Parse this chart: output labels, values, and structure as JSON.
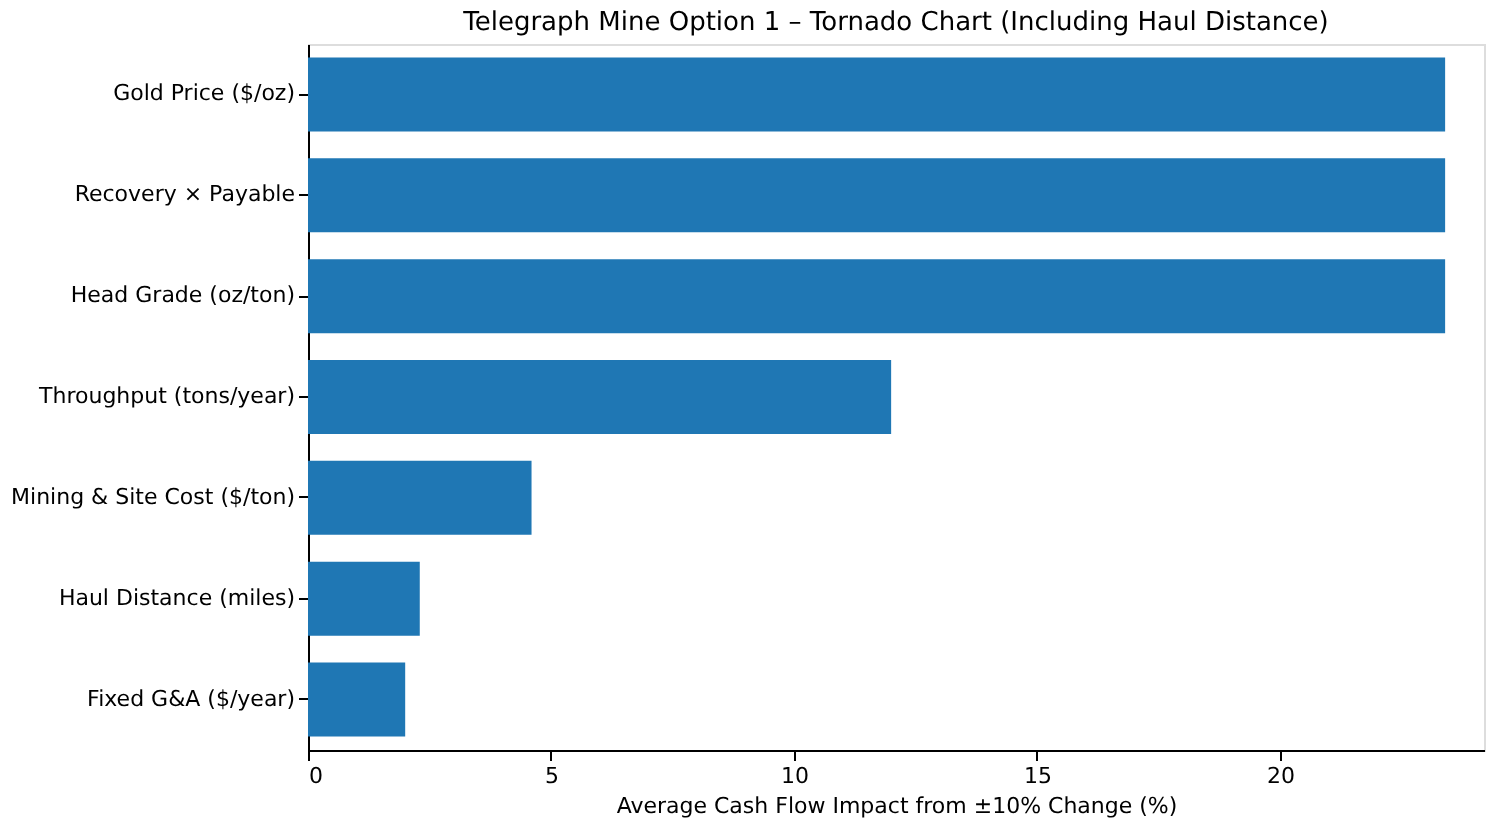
{
  "chart_data": {
    "type": "bar",
    "orientation": "horizontal",
    "title": "Telegraph Mine Option 1 – Tornado Chart (Including Haul Distance)",
    "xlabel": "Average Cash Flow Impact from ±10% Change (%)",
    "categories": [
      "Gold Price ($/oz)",
      "Recovery × Payable",
      "Head Grade (oz/ton)",
      "Throughput (tons/year)",
      "Mining & Site Cost ($/ton)",
      "Haul Distance (miles)",
      "Fixed G&A ($/year)"
    ],
    "values": [
      23.4,
      23.4,
      23.4,
      12.0,
      4.6,
      2.3,
      2.0
    ],
    "color": "#1f77b4",
    "xlim": [
      0,
      24.2
    ],
    "xticks": [
      0,
      5,
      10,
      15,
      20
    ],
    "grid": false
  }
}
